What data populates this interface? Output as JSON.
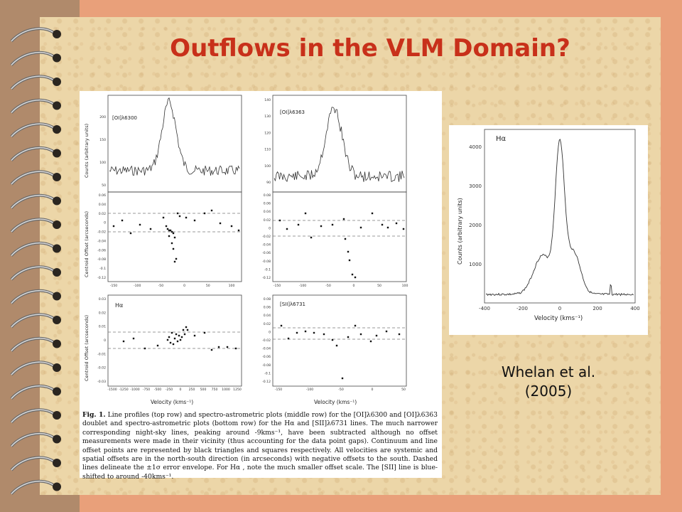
{
  "title": "Outflows in the VLM Domain?",
  "citation": {
    "authors": "Whelan et al.",
    "year": "(2005)"
  },
  "left_figure": {
    "panels": [
      {
        "label": "[OI]λ6300",
        "ylabel": "Counts (arbitrary units)",
        "yticks": [
          "200",
          "150",
          "100",
          "50"
        ]
      },
      {
        "label": "[OI]λ6363",
        "ylabel": "",
        "yticks": [
          "140",
          "130",
          "120",
          "110",
          "100",
          "90"
        ]
      },
      {
        "label": "",
        "ylabel": "Centroid Offset (arcseconds)",
        "yticks": [
          "0.06",
          "0.04",
          "0.02",
          "0",
          "-0.02",
          "-0.04",
          "-0.06",
          "-0.08",
          "-0.1",
          "-0.12"
        ]
      },
      {
        "label": "",
        "ylabel": "",
        "yticks": [
          "0.08",
          "0.06",
          "0.04",
          "0.02",
          "0",
          "-0.02",
          "-0.04",
          "-0.06",
          "-0.08",
          "-0.1",
          "-0.12"
        ]
      },
      {
        "label": "Hα",
        "ylabel": "Centroid Offset (arcseconds)",
        "yticks": [
          "0.03",
          "0.02",
          "0.01",
          "0",
          "-0.01",
          "-0.02",
          "-0.03"
        ],
        "xticks": [
          "-1500",
          "-1250",
          "-1000",
          "-750",
          "-500",
          "-250",
          "0",
          "250",
          "500",
          "750",
          "1000",
          "1250"
        ]
      },
      {
        "label": "[SII]λ6731",
        "ylabel": "",
        "yticks": [
          "0.08",
          "0.06",
          "0.04",
          "0.02",
          "0",
          "-0.02",
          "-0.04",
          "-0.06",
          "-0.08",
          "-0.1",
          "-0.12"
        ],
        "xticks": [
          "-150",
          "-100",
          "-50",
          "0",
          "50"
        ]
      }
    ],
    "xticks_top": [
      "-150",
      "-100",
      "-50",
      "0",
      "50",
      "100"
    ],
    "xticks_top_right": [
      "-150",
      "-100",
      "-50",
      "0",
      "50",
      "100"
    ],
    "xlabel_left": "Velocity (kms⁻¹)",
    "xlabel_right": "Velocity (kms⁻¹)",
    "caption_lead": "Fig. 1.",
    "caption_body": "Line profiles (top row) and spectro-astrometric plots (middle row) for the [OI]λ6300 and [OI]λ6363 doublet and spectro-astrometric plots (bottom row) for the Hα and [SII]λ6731 lines. The much narrower corresponding night-sky lines, peaking around -9kms⁻¹, have been subtracted although no offset measurements were made in their vicinity (thus accounting for the data point gaps). Continuum and line offset points are represented by black triangles and squares respectively. All velocities are systemic and spatial offsets are in the north-south direction (in arcseconds) with negative offsets to the south. Dashed lines delineate the ±1σ error envelope. For Hα , note the much smaller offset scale. The [SII] line is blue-shifted to around -40kms⁻¹."
  },
  "right_figure": {
    "label": "Hα",
    "ylabel": "Counts (arbitrary units)",
    "xlabel": "Velocity (kms⁻¹)",
    "yticks": [
      "4000",
      "3000",
      "2000",
      "1000"
    ],
    "xticks": [
      "-400",
      "-200",
      "0",
      "200",
      "400"
    ]
  },
  "colors": {
    "title": "#c8301a",
    "paper": "#ecd6a8",
    "border": "#e9a07a",
    "binding": "#b08a6b"
  }
}
